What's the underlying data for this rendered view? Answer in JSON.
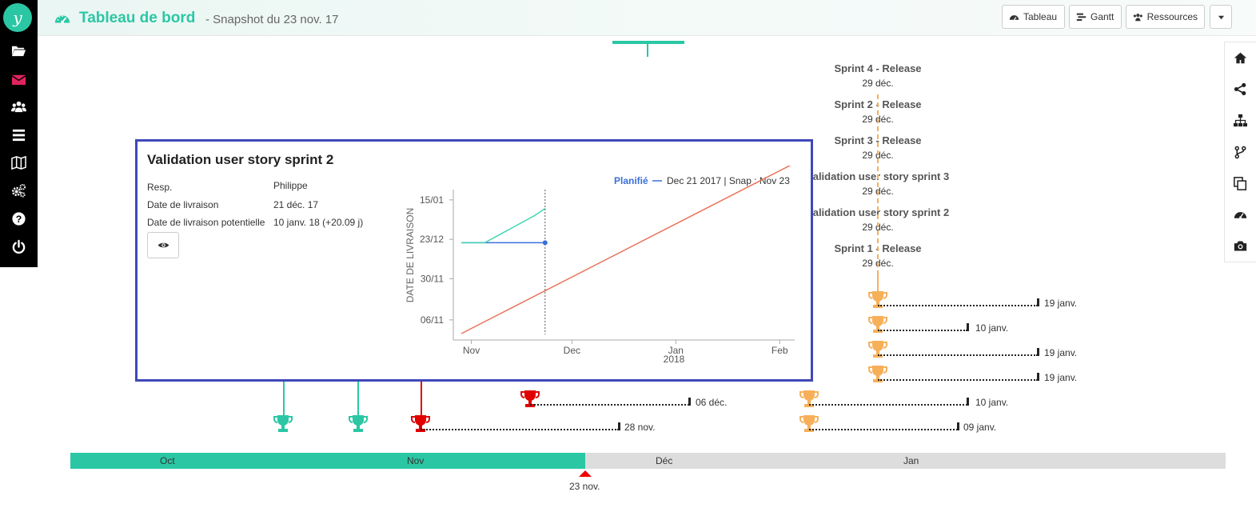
{
  "header": {
    "title": "Tableau de bord",
    "subtitle": "- Snapshot du 23 nov. 17",
    "buttons": {
      "tableau": "Tableau",
      "gantt": "Gantt",
      "ressources": "Ressources"
    }
  },
  "sidebar": {
    "logo": "y",
    "items": [
      "folder-open-icon",
      "envelope-icon",
      "users-icon",
      "bars-icon",
      "map-icon",
      "cogs-icon",
      "question-icon",
      "power-icon"
    ]
  },
  "right_toolbar": [
    "home-icon",
    "share-icon",
    "sitemap-icon",
    "branch-icon",
    "copy-icon",
    "dashboard-icon",
    "camera-icon"
  ],
  "milestones": [
    {
      "name": "Sprint 4 - Release",
      "date": "29 déc."
    },
    {
      "name": "Sprint 2 - Release",
      "date": "29 déc."
    },
    {
      "name": "Sprint 3 - Release",
      "date": "29 déc."
    },
    {
      "name": "Validation user story sprint 3",
      "date": "29 déc."
    },
    {
      "name": "Validation user story sprint 2",
      "date": "29 déc."
    },
    {
      "name": "Sprint 1 - Release",
      "date": "29 déc."
    }
  ],
  "delays": {
    "d1": "19 janv.",
    "d2": "10 janv.",
    "d3": "19 janv.",
    "d4": "19 janv.",
    "d5": "10 janv.",
    "d6": "09 janv.",
    "d7": "06 déc.",
    "d8": "28 nov."
  },
  "colors": {
    "teal": "#2bc7a4",
    "orange": "#f7b05a",
    "red": "#e00000",
    "popup_border": "#3f48b7",
    "line_planned": "#3a6fd8",
    "line_snap": "#40d6b0",
    "line_diag": "#e8735a"
  },
  "popup": {
    "title": "Validation user story sprint 2",
    "resp_label": "Resp.",
    "resp_value": "Philippe",
    "date_label": "Date de livraison",
    "date_value": "21 déc. 17",
    "potential_label": "Date de livraison potentielle",
    "potential_value": "10 janv. 18 (+20.09 j)",
    "legend_planned": "Planifié",
    "legend_info": "Dec 21 2017 | Snap : Nov 23",
    "chart_ylabel": "DATE DE LIVRAISON",
    "chart_yticks": [
      "15/01",
      "23/12",
      "30/11",
      "06/11"
    ],
    "chart_xticks": [
      "Nov",
      "Dec",
      "Jan",
      "Feb"
    ],
    "chart_xsub": "2018"
  },
  "chart_data": {
    "type": "line",
    "title": "",
    "xlabel": "",
    "ylabel": "DATE DE LIVRAISON",
    "series": [
      {
        "name": "Planifié",
        "x": [
          "2017-10-29",
          "2017-11-23"
        ],
        "y": [
          "2017-12-21",
          "2017-12-21"
        ]
      },
      {
        "x": [
          "2017-10-29",
          "2017-11-05",
          "2017-11-20",
          "2017-11-23"
        ],
        "y": [
          "2017-12-21",
          "2017-12-21",
          "2018-01-06",
          "2018-01-10"
        ]
      },
      {
        "x": [
          "2017-10-29",
          "2018-02-05"
        ],
        "y": [
          "2017-10-29",
          "2018-02-05"
        ]
      }
    ],
    "snapshot": "2017-11-23"
  },
  "timeline": {
    "months": [
      "Oct",
      "Nov",
      "Déc",
      "Jan"
    ],
    "today": "23 nov."
  }
}
